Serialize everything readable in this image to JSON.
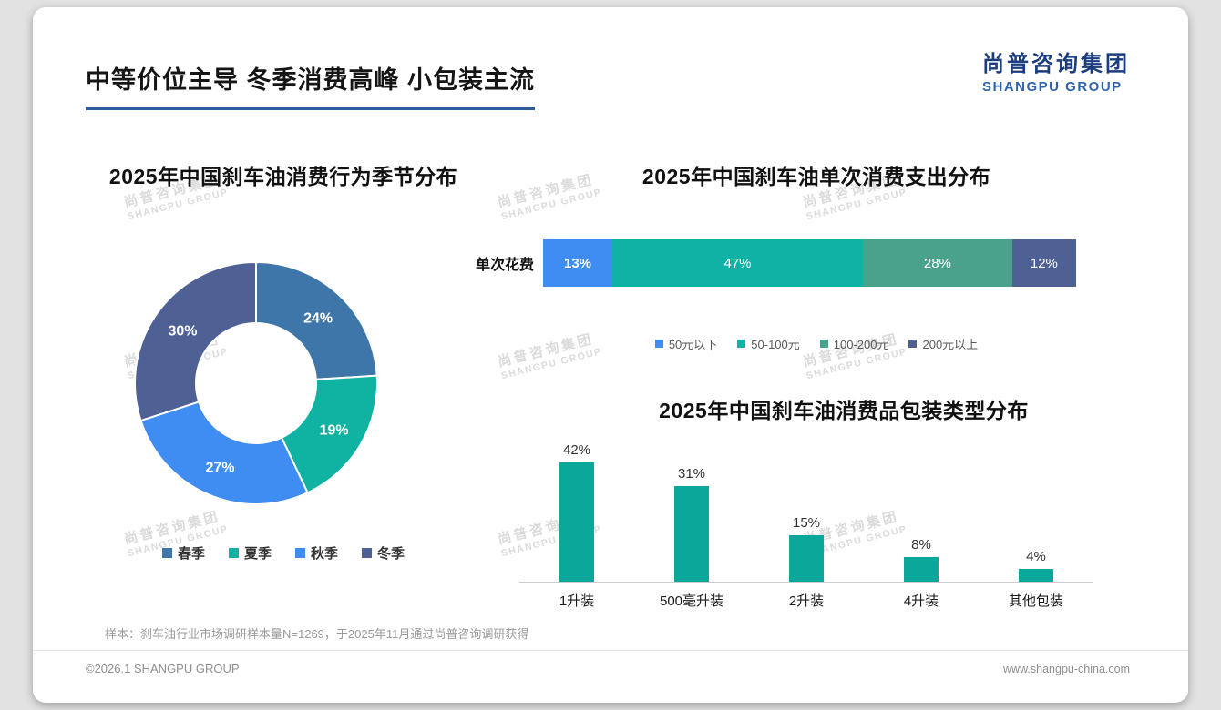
{
  "page": {
    "title": "中等价位主导 冬季消费高峰 小包装主流",
    "logo": {
      "cn": "尚普咨询集团",
      "en": "SHANGPU GROUP"
    },
    "watermark": {
      "cn": "尚普咨询集团",
      "en": "SHANGPU GROUP"
    },
    "footnote": "样本：刹车油行业市场调研样本量N=1269，于2025年11月通过尚普咨询调研获得",
    "footer_left": "©2026.1 SHANGPU GROUP",
    "footer_right": "www.shangpu-china.com"
  },
  "chart_data": [
    {
      "type": "pie",
      "subtype": "donut",
      "title": "2025年中国刹车油消费行为季节分布",
      "categories": [
        "春季",
        "夏季",
        "秋季",
        "冬季"
      ],
      "values": [
        24,
        19,
        27,
        30
      ],
      "unit": "%",
      "colors": [
        "#3f76a9",
        "#10b2a2",
        "#3f8cf3",
        "#4f6095"
      ],
      "legend_position": "bottom",
      "start_angle": "top",
      "direction": "clockwise"
    },
    {
      "type": "bar",
      "subtype": "stacked-horizontal",
      "title": "2025年中国刹车油单次消费支出分布",
      "row_label": "单次花费",
      "categories": [
        "50元以下",
        "50-100元",
        "100-200元",
        "200元以上"
      ],
      "values": [
        13,
        47,
        28,
        12
      ],
      "unit": "%",
      "colors": [
        "#3f8cf3",
        "#0fb2a4",
        "#4aa28d",
        "#4f6095"
      ],
      "legend_position": "bottom"
    },
    {
      "type": "bar",
      "subtype": "vertical",
      "title": "2025年中国刹车油消费品包装类型分布",
      "categories": [
        "1升装",
        "500毫升装",
        "2升装",
        "4升装",
        "其他包装"
      ],
      "values": [
        42,
        31,
        15,
        8,
        4
      ],
      "unit": "%",
      "color": "#0ca79b",
      "ylim": [
        0,
        45
      ],
      "grid": false
    }
  ]
}
